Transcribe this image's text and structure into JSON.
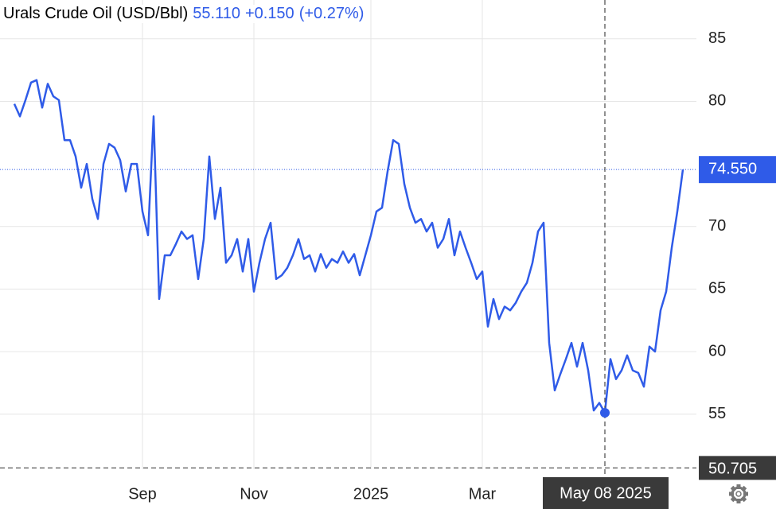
{
  "chart_data": {
    "type": "line",
    "title": "Urals Crude Oil (USD/Bbl)",
    "hover_value": "55.110",
    "hover_change": "+0.150",
    "hover_change_pct": "(+0.27%)",
    "categories": [
      null,
      null,
      null,
      null,
      null,
      null,
      null,
      null,
      null,
      null,
      null,
      null,
      null,
      null,
      null,
      null,
      null,
      null,
      null,
      null,
      null,
      null,
      null,
      "Sep",
      null,
      null,
      null,
      null,
      null,
      null,
      null,
      null,
      null,
      null,
      null,
      null,
      null,
      null,
      null,
      null,
      null,
      null,
      null,
      "Nov",
      null,
      null,
      null,
      null,
      null,
      null,
      null,
      null,
      null,
      null,
      null,
      null,
      null,
      null,
      null,
      null,
      null,
      null,
      null,
      null,
      "2025",
      null,
      null,
      null,
      null,
      null,
      null,
      null,
      null,
      null,
      null,
      null,
      null,
      null,
      null,
      null,
      null,
      null,
      null,
      null,
      "Mar",
      null,
      null,
      null,
      null,
      null,
      null,
      null,
      null,
      null,
      null,
      null,
      null,
      null,
      null,
      null,
      null,
      null,
      null,
      null,
      null,
      null,
      "May 08 2025",
      null,
      null,
      null,
      null,
      null,
      null,
      null,
      null,
      null,
      null,
      null,
      null,
      null,
      null
    ],
    "series": [
      {
        "name": "Urals Crude Oil",
        "color": "#2f5be8",
        "values": [
          79.8,
          78.8,
          80.1,
          81.5,
          81.7,
          79.5,
          81.4,
          80.4,
          80.1,
          76.9,
          76.9,
          75.6,
          73.1,
          75.0,
          72.2,
          70.6,
          75.0,
          76.6,
          76.3,
          75.3,
          72.8,
          75.0,
          75.0,
          71.2,
          69.3,
          78.8,
          64.2,
          67.7,
          67.7,
          68.6,
          69.6,
          69.0,
          69.3,
          65.8,
          69.0,
          75.6,
          70.6,
          73.1,
          67.1,
          67.7,
          69.0,
          66.4,
          69.0,
          64.8,
          67.1,
          69.0,
          70.3,
          65.8,
          66.1,
          66.7,
          67.7,
          69.0,
          67.4,
          67.7,
          66.4,
          67.8,
          66.7,
          67.4,
          67.1,
          68.0,
          67.1,
          67.8,
          66.1,
          67.7,
          69.3,
          71.2,
          71.5,
          74.4,
          76.9,
          76.6,
          73.4,
          71.5,
          70.3,
          70.6,
          69.6,
          70.3,
          68.3,
          69.0,
          70.6,
          67.7,
          69.6,
          68.3,
          67.1,
          65.8,
          66.4,
          62.0,
          64.2,
          62.6,
          63.6,
          63.3,
          63.9,
          64.8,
          65.5,
          67.1,
          69.6,
          70.3,
          60.7,
          56.9,
          58.2,
          59.4,
          60.7,
          58.8,
          60.7,
          58.5,
          55.3,
          55.9,
          55.11,
          59.4,
          57.8,
          58.5,
          59.7,
          58.5,
          58.3,
          57.2,
          60.4,
          60.0,
          63.3,
          64.8,
          68.3,
          71.2,
          74.55
        ]
      }
    ],
    "ylim": [
      50.6,
      88.1
    ],
    "yticks": [
      55,
      60,
      65,
      70,
      80,
      85
    ],
    "grid": true,
    "last_price": {
      "value": 74.55,
      "label": "74.550"
    },
    "crosshair": {
      "index": 106,
      "y": {
        "value": 50.705,
        "label": "50.705"
      }
    }
  }
}
